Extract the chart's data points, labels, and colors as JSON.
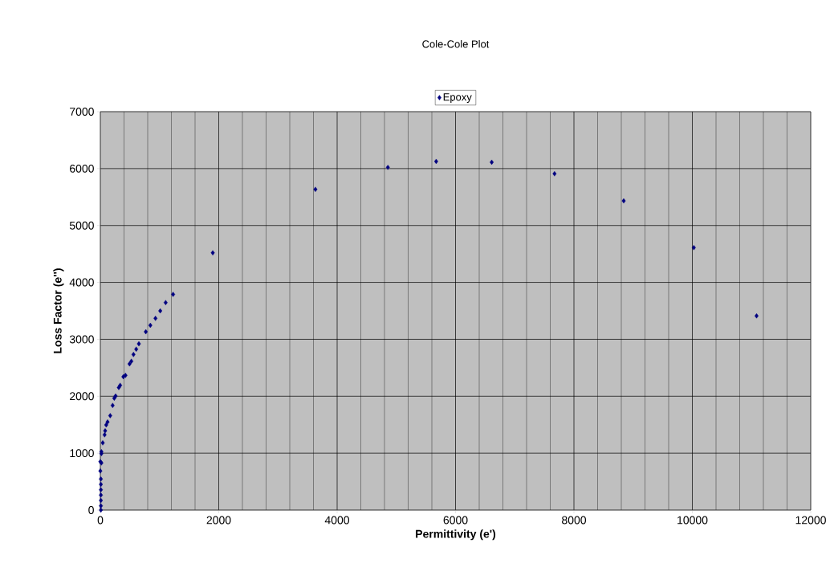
{
  "chart_data": {
    "type": "scatter",
    "title": "Cole-Cole Plot",
    "xlabel": "Permittivity (e')",
    "ylabel": "Loss Factor (e'')",
    "series": [
      {
        "name": "Epoxy",
        "color": "#000080",
        "x": [
          11085,
          10025,
          8841,
          7672,
          6611,
          5673,
          4857,
          3633,
          1899,
          1229,
          1103,
          1012,
          931,
          845,
          768,
          651,
          606,
          560,
          524,
          493,
          425,
          389,
          335,
          312,
          258,
          235,
          208,
          167,
          122,
          99,
          81,
          72,
          41,
          18,
          18,
          0,
          18,
          0,
          9,
          9,
          9,
          9,
          9,
          9,
          9
        ],
        "values": [
          3412,
          4611,
          5432,
          5909,
          6112,
          6126,
          6021,
          5635,
          4520,
          3791,
          3646,
          3500,
          3368,
          3246,
          3133,
          2921,
          2827,
          2733,
          2615,
          2568,
          2366,
          2343,
          2192,
          2154,
          2004,
          1966,
          1839,
          1660,
          1548,
          1496,
          1392,
          1322,
          1181,
          1025,
          993,
          851,
          828,
          687,
          546,
          452,
          357,
          263,
          169,
          75,
          0
        ]
      }
    ],
    "xlim": [
      0,
      12000
    ],
    "ylim": [
      0,
      7000
    ],
    "xticks": [
      0,
      2000,
      4000,
      6000,
      8000,
      10000,
      12000
    ],
    "yticks": [
      0,
      1000,
      2000,
      3000,
      4000,
      5000,
      6000,
      7000
    ],
    "grid": true,
    "legend": "top",
    "marker": "diamond"
  }
}
